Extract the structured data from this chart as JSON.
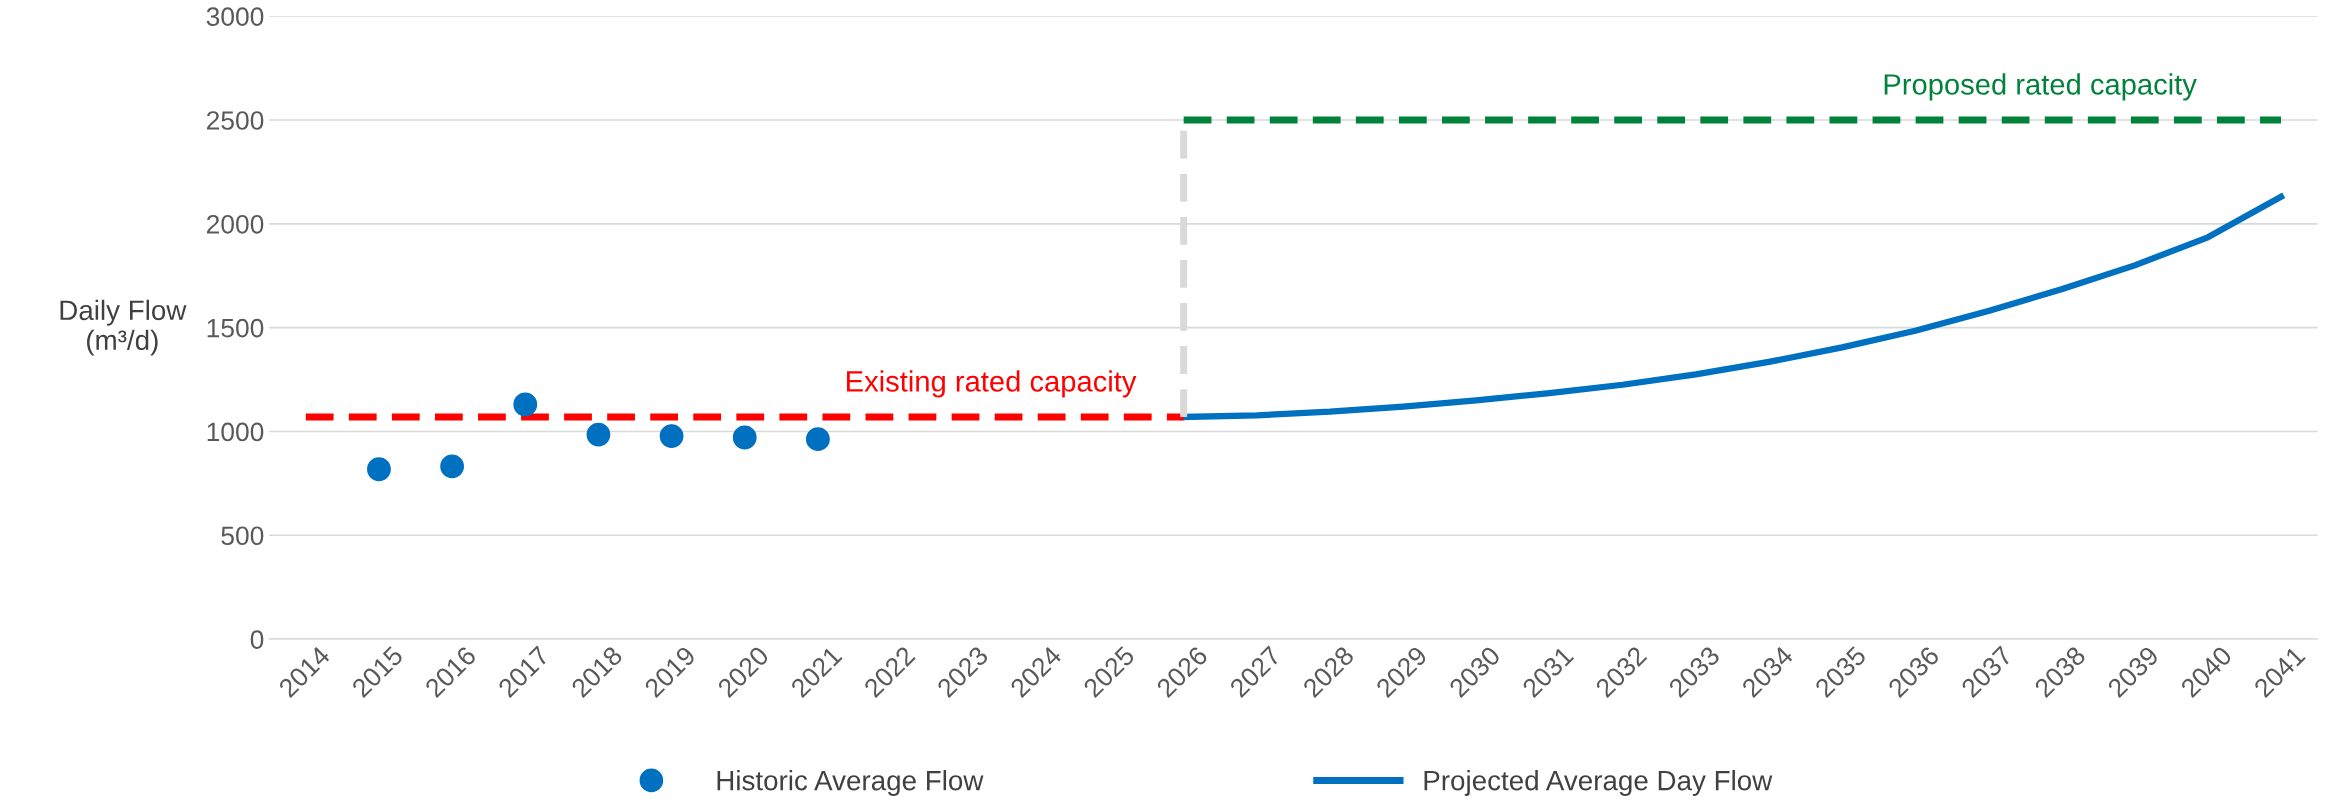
{
  "chart_data": {
    "type": "line",
    "ylabel": "Daily Flow\n(m³/d)",
    "xlim": [
      2013.5,
      2041.5
    ],
    "xticks": [
      2014,
      2015,
      2016,
      2017,
      2018,
      2019,
      2020,
      2021,
      2022,
      2023,
      2024,
      2025,
      2026,
      2027,
      2028,
      2029,
      2030,
      2031,
      2032,
      2033,
      2034,
      2035,
      2036,
      2037,
      2038,
      2039,
      2040,
      2041
    ],
    "ylim": [
      0,
      3000
    ],
    "yticks": [
      0,
      500,
      1000,
      1500,
      2000,
      2500,
      3000
    ],
    "grid": "y",
    "legend": "bottom",
    "series": [
      {
        "name": "Historic Average Flow",
        "type": "scatter",
        "marker": "circle",
        "color": "#0070c0",
        "x": [
          2015,
          2016,
          2017,
          2018,
          2019,
          2020,
          2021
        ],
        "values": [
          818,
          832,
          1130,
          985,
          978,
          971,
          963
        ]
      },
      {
        "name": "Projected Average Day Flow",
        "type": "line",
        "line_style": "solid",
        "color": "#0070c0",
        "x": [
          2026,
          2027,
          2028,
          2029,
          2030,
          2031,
          2032,
          2033,
          2034,
          2035,
          2036,
          2037,
          2038,
          2039,
          2040,
          2041
        ],
        "values": [
          1070,
          1078,
          1095,
          1120,
          1150,
          1185,
          1225,
          1275,
          1335,
          1405,
          1485,
          1580,
          1685,
          1800,
          1935,
          2130
        ]
      },
      {
        "name": "Existing rated capacity",
        "line_style": "dashed",
        "color": "#ff0000",
        "x": [
          2014,
          2026
        ],
        "values": [
          1070,
          1070
        ]
      },
      {
        "name": "Proposed rated capacity",
        "line_style": "dashed",
        "color": "#00823b",
        "x": [
          2026,
          2041
        ],
        "values": [
          2500,
          2500
        ]
      },
      {
        "line_style": "dashed",
        "color": "#d9d9d9",
        "x": [
          2026,
          2026
        ],
        "values": [
          1070,
          2500
        ]
      }
    ]
  }
}
